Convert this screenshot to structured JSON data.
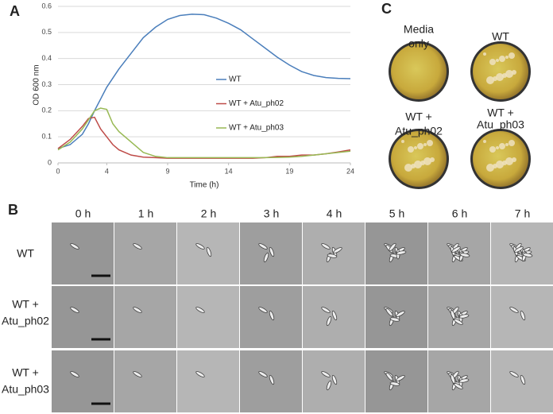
{
  "panel_labels": [
    "A",
    "B",
    "C"
  ],
  "chart_data": {
    "type": "line",
    "xlabel": "Time (h)",
    "ylabel": "OD 600 nm",
    "x": [
      0,
      1,
      2,
      2.5,
      3,
      3.5,
      4,
      4.5,
      5,
      6,
      7,
      8,
      9,
      10,
      11,
      12,
      13,
      14,
      15,
      16,
      17,
      18,
      19,
      20,
      21,
      22,
      23,
      24
    ],
    "series": [
      {
        "name": "WT",
        "color": "#4a7ebb",
        "values": [
          0.055,
          0.07,
          0.11,
          0.15,
          0.2,
          0.245,
          0.29,
          0.325,
          0.36,
          0.42,
          0.48,
          0.52,
          0.55,
          0.565,
          0.57,
          0.568,
          0.555,
          0.535,
          0.51,
          0.475,
          0.44,
          0.405,
          0.375,
          0.35,
          0.335,
          0.327,
          0.324,
          0.323
        ]
      },
      {
        "name": "WT + Atu_ph02",
        "color": "#be4b48",
        "values": [
          0.055,
          0.09,
          0.14,
          0.17,
          0.175,
          0.13,
          0.1,
          0.07,
          0.05,
          0.03,
          0.022,
          0.02,
          0.018,
          0.018,
          0.018,
          0.018,
          0.018,
          0.018,
          0.018,
          0.018,
          0.02,
          0.025,
          0.025,
          0.03,
          0.03,
          0.035,
          0.042,
          0.05
        ]
      },
      {
        "name": "WT + Atu_ph03",
        "color": "#98b954",
        "values": [
          0.05,
          0.08,
          0.13,
          0.165,
          0.2,
          0.21,
          0.205,
          0.15,
          0.12,
          0.08,
          0.04,
          0.025,
          0.02,
          0.02,
          0.02,
          0.02,
          0.02,
          0.02,
          0.02,
          0.02,
          0.02,
          0.021,
          0.022,
          0.025,
          0.03,
          0.035,
          0.04,
          0.045
        ]
      }
    ],
    "xlim": [
      0,
      24
    ],
    "xticks": [
      0,
      4,
      9,
      14,
      19,
      24
    ],
    "ylim": [
      0,
      0.6
    ],
    "yticks": [
      0,
      0.1,
      0.2,
      0.3,
      0.4,
      0.5,
      0.6
    ],
    "grid": true,
    "legend": "right"
  },
  "plates": {
    "labels": [
      [
        "Media",
        "only"
      ],
      [
        "WT"
      ],
      [
        "WT +",
        "Atu_ph02"
      ],
      [
        "WT +",
        "Atu_ph03"
      ]
    ]
  },
  "timelapse": {
    "columns": [
      "0 h",
      "1 h",
      "2 h",
      "3 h",
      "4 h",
      "5 h",
      "6 h",
      "7 h"
    ],
    "rows": [
      [
        "WT"
      ],
      [
        "WT +",
        "Atu_ph02"
      ],
      [
        "WT +",
        "Atu_ph03"
      ]
    ]
  }
}
